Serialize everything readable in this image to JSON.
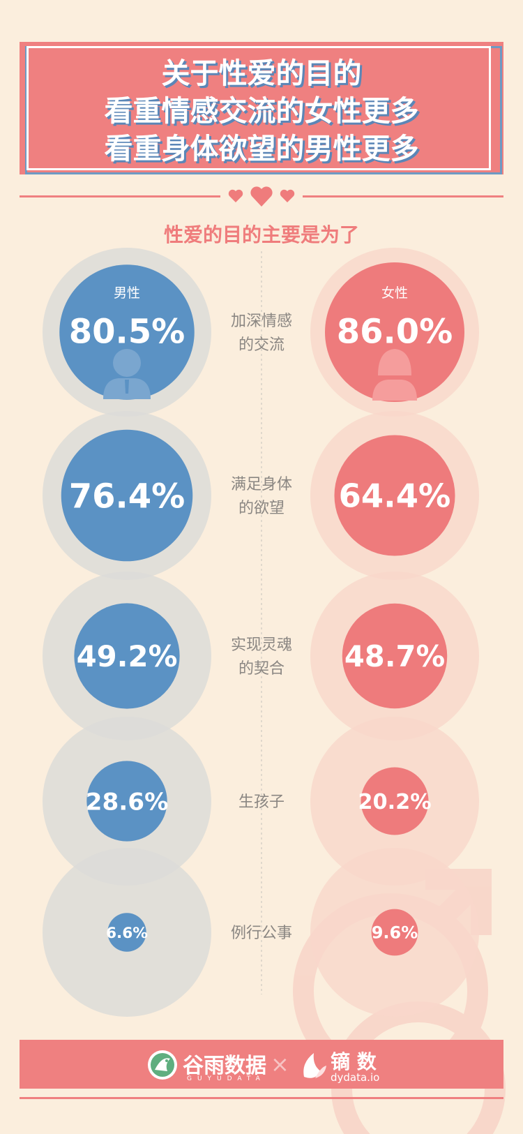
{
  "title_lines": [
    "关于性爱的目的",
    "看重情感交流的女性更多",
    "看重身体欲望的男性更多"
  ],
  "chart_data": {
    "type": "bubble",
    "title": "性爱的目的主要是为了",
    "categories": [
      [
        "加深情感",
        "的交流"
      ],
      [
        "满足身体",
        "的欲望"
      ],
      [
        "实现灵魂",
        "的契合"
      ],
      [
        "生孩子"
      ],
      [
        "例行公事"
      ]
    ],
    "series": [
      {
        "name": "男性",
        "values": [
          80.5,
          76.4,
          49.2,
          28.6,
          6.6
        ],
        "labels": [
          "80.5%",
          "76.4%",
          "49.2%",
          "28.6%",
          "6.6%"
        ]
      },
      {
        "name": "女性",
        "values": [
          86.0,
          64.4,
          48.7,
          20.2,
          9.6
        ],
        "labels": [
          "86.0%",
          "64.4%",
          "48.7%",
          "20.2%",
          "9.6%"
        ]
      }
    ],
    "colors": {
      "male": "#5b92c4",
      "female": "#ee7b7c",
      "male_track": "#dcdcd8",
      "female_track": "#f9d7cb"
    }
  },
  "footer": {
    "logo1": "谷雨数据",
    "logo1_sub": "GUYUDATA",
    "separator": "×",
    "logo2": "镝 数",
    "logo2_sub": "dydata.io"
  },
  "icons": [
    "male-person-icon",
    "female-person-icon",
    "heart-icon",
    "male-symbol-icon",
    "guyu-bird-logo-icon",
    "dydata-leaf-logo-icon"
  ]
}
